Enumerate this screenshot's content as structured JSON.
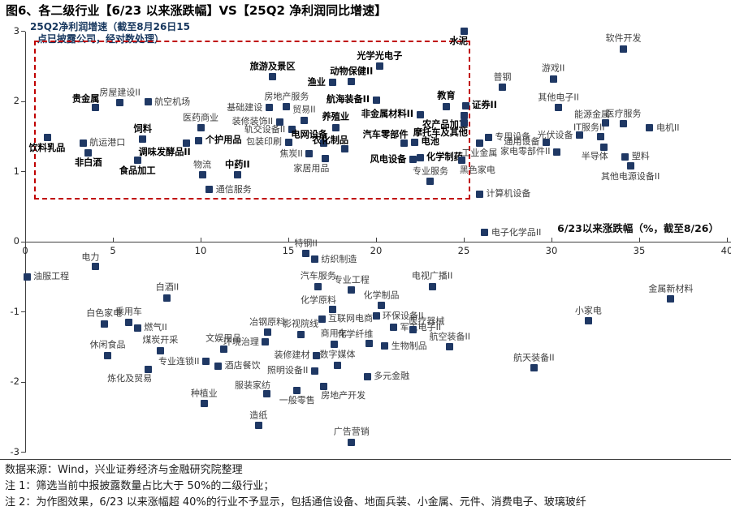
{
  "title": "图6、各二级行业【6/23 以来涨跌幅】VS【25Q2 净利润同比增速】",
  "footer": {
    "source": "数据来源：Wind，兴业证券经济与金融研究院整理",
    "note1": "注 1：筛选当前中报披露数量占比大于 50%的二级行业；",
    "note2": "注 2：为作图效果，6/23 以来涨幅超 40%的行业不予显示，包括通信设备、地面兵装、小金属、元件、消费电子、玻璃玻纤"
  },
  "chart_data": {
    "type": "scatter",
    "title": "各二级行业 6/23以来涨跌幅 VS 25Q2净利润同比增速",
    "y_axis_annotation_line1": "25Q2净利润增速（截至8月26日15",
    "y_axis_annotation_line2": "点已披露公司，经对数处理）",
    "x_axis_label": "6/23以来涨跌幅（%，截至8/26）",
    "x_ticks": [
      0,
      5,
      10,
      15,
      20,
      25,
      30,
      35,
      40
    ],
    "y_ticks": [
      3,
      2,
      1,
      0,
      -1,
      -2,
      -3
    ],
    "xlim": [
      0,
      40
    ],
    "ylim": [
      -3,
      3
    ],
    "grid": false,
    "legend": "none",
    "marker_color": "#1F3864",
    "highlight_box": {
      "x_min": 0.5,
      "x_max": 25.2,
      "y_min": 0.65,
      "y_max": 2.87,
      "color": "#C00000"
    },
    "points": [
      {
        "label": "饮料乳品",
        "x": 1.25,
        "y": 1.48,
        "bold": true,
        "pos": "below"
      },
      {
        "label": "航运港口",
        "x": 3.3,
        "y": 1.41,
        "bold": false,
        "pos": "right"
      },
      {
        "label": "贵金属",
        "x": 4.0,
        "y": 1.91,
        "bold": true,
        "pos": "above-left"
      },
      {
        "label": "非白酒",
        "x": 3.6,
        "y": 1.27,
        "bold": true,
        "pos": "below"
      },
      {
        "label": "房屋建设II",
        "x": 5.4,
        "y": 1.98,
        "bold": false,
        "pos": "above"
      },
      {
        "label": "航空机场",
        "x": 7.0,
        "y": 1.99,
        "bold": false,
        "pos": "right"
      },
      {
        "label": "饲料",
        "x": 6.7,
        "y": 1.46,
        "bold": true,
        "pos": "above"
      },
      {
        "label": "食品加工",
        "x": 6.4,
        "y": 1.16,
        "bold": true,
        "pos": "below"
      },
      {
        "label": "调味发酵品II",
        "x": 9.2,
        "y": 1.41,
        "bold": true,
        "pos": "below-left"
      },
      {
        "label": "医药商业",
        "x": 10.0,
        "y": 1.62,
        "bold": false,
        "pos": "above"
      },
      {
        "label": "个护用品",
        "x": 9.9,
        "y": 1.44,
        "bold": true,
        "pos": "right"
      },
      {
        "label": "物流",
        "x": 10.1,
        "y": 0.95,
        "bold": false,
        "pos": "above"
      },
      {
        "label": "中药II",
        "x": 12.1,
        "y": 0.95,
        "bold": true,
        "pos": "above"
      },
      {
        "label": "通信服务",
        "x": 10.5,
        "y": 0.74,
        "bold": false,
        "pos": "right"
      },
      {
        "label": "旅游及景区",
        "x": 14.1,
        "y": 2.35,
        "bold": true,
        "pos": "above"
      },
      {
        "label": "基础建设",
        "x": 13.9,
        "y": 1.91,
        "bold": false,
        "pos": "left"
      },
      {
        "label": "房地产服务",
        "x": 14.9,
        "y": 1.92,
        "bold": false,
        "pos": "above"
      },
      {
        "label": "装修装饰II",
        "x": 14.5,
        "y": 1.71,
        "bold": false,
        "pos": "left"
      },
      {
        "label": "轨交设备II",
        "x": 15.2,
        "y": 1.6,
        "bold": false,
        "pos": "left"
      },
      {
        "label": "包装印刷",
        "x": 15.0,
        "y": 1.42,
        "bold": false,
        "pos": "left"
      },
      {
        "label": "贸易II",
        "x": 15.9,
        "y": 1.73,
        "bold": false,
        "pos": "above"
      },
      {
        "label": "焦炭II",
        "x": 16.2,
        "y": 1.25,
        "bold": false,
        "pos": "left"
      },
      {
        "label": "电网设备",
        "x": 17.0,
        "y": 1.4,
        "bold": true,
        "pos": "above-left"
      },
      {
        "label": "家居用品",
        "x": 17.1,
        "y": 1.18,
        "bold": false,
        "pos": "below-left"
      },
      {
        "label": "渔业",
        "x": 17.5,
        "y": 2.27,
        "bold": true,
        "pos": "left"
      },
      {
        "label": "养殖业",
        "x": 17.7,
        "y": 1.63,
        "bold": true,
        "pos": "above"
      },
      {
        "label": "农化制品",
        "x": 18.2,
        "y": 1.32,
        "bold": true,
        "pos": "above-left"
      },
      {
        "label": "动物保健II",
        "x": 18.6,
        "y": 2.28,
        "bold": true,
        "pos": "above"
      },
      {
        "label": "光学光电子",
        "x": 20.2,
        "y": 2.5,
        "bold": true,
        "pos": "above"
      },
      {
        "label": "航海装备II",
        "x": 20.0,
        "y": 2.02,
        "bold": true,
        "pos": "left"
      },
      {
        "label": "汽车零部件",
        "x": 21.6,
        "y": 1.4,
        "bold": true,
        "pos": "above-left"
      },
      {
        "label": "电池",
        "x": 22.2,
        "y": 1.42,
        "bold": true,
        "pos": "right"
      },
      {
        "label": "非金属材料II",
        "x": 22.5,
        "y": 1.81,
        "bold": true,
        "pos": "left"
      },
      {
        "label": "风电设备",
        "x": 22.1,
        "y": 1.17,
        "bold": true,
        "pos": "left"
      },
      {
        "label": "化学制药",
        "x": 22.5,
        "y": 1.2,
        "bold": true,
        "pos": "right"
      },
      {
        "label": "专业服务",
        "x": 23.1,
        "y": 0.86,
        "bold": false,
        "pos": "above"
      },
      {
        "label": "教育",
        "x": 24.0,
        "y": 1.93,
        "bold": true,
        "pos": "above"
      },
      {
        "label": "证券II",
        "x": 25.1,
        "y": 1.94,
        "bold": true,
        "pos": "right"
      },
      {
        "label": "农产品加工",
        "x": 25.0,
        "y": 1.8,
        "bold": true,
        "pos": "below-left"
      },
      {
        "label": "摩托车及其他",
        "x": 25.0,
        "y": 1.69,
        "bold": true,
        "pos": "below-left"
      },
      {
        "label": "水泥",
        "x": 25.0,
        "y": 3.0,
        "bold": true,
        "pos": "below-left"
      },
      {
        "label": "电力",
        "x": 4.0,
        "y": -0.35,
        "bold": false,
        "pos": "above-left"
      },
      {
        "label": "油服工程",
        "x": 0.1,
        "y": -0.5,
        "bold": false,
        "pos": "right"
      },
      {
        "label": "白酒II",
        "x": 8.1,
        "y": -0.8,
        "bold": false,
        "pos": "above"
      },
      {
        "label": "白色家电",
        "x": 4.5,
        "y": -1.17,
        "bold": false,
        "pos": "above"
      },
      {
        "label": "乘用车",
        "x": 5.9,
        "y": -1.15,
        "bold": false,
        "pos": "above"
      },
      {
        "label": "燃气II",
        "x": 6.4,
        "y": -1.23,
        "bold": false,
        "pos": "right"
      },
      {
        "label": "休闲食品",
        "x": 4.7,
        "y": -1.62,
        "bold": false,
        "pos": "above"
      },
      {
        "label": "煤炭开采",
        "x": 7.7,
        "y": -1.55,
        "bold": false,
        "pos": "above"
      },
      {
        "label": "专业连锁II",
        "x": 10.3,
        "y": -1.71,
        "bold": false,
        "pos": "left"
      },
      {
        "label": "炼化及贸易",
        "x": 7.0,
        "y": -1.82,
        "bold": false,
        "pos": "below-left"
      },
      {
        "label": "文娱用品",
        "x": 11.3,
        "y": -1.53,
        "bold": false,
        "pos": "above"
      },
      {
        "label": "酒店餐饮",
        "x": 11.0,
        "y": -1.77,
        "bold": false,
        "pos": "right"
      },
      {
        "label": "环境治理",
        "x": 13.7,
        "y": -1.43,
        "bold": false,
        "pos": "left"
      },
      {
        "label": "种植业",
        "x": 10.2,
        "y": -2.31,
        "bold": false,
        "pos": "above"
      },
      {
        "label": "造纸",
        "x": 13.3,
        "y": -2.62,
        "bold": false,
        "pos": "above"
      },
      {
        "label": "特钢II",
        "x": 16.0,
        "y": -0.17,
        "bold": false,
        "pos": "above"
      },
      {
        "label": "纺织制造",
        "x": 16.5,
        "y": -0.25,
        "bold": false,
        "pos": "right"
      },
      {
        "label": "汽车服务",
        "x": 16.7,
        "y": -0.64,
        "bold": false,
        "pos": "above"
      },
      {
        "label": "专业工程",
        "x": 18.6,
        "y": -0.69,
        "bold": false,
        "pos": "above"
      },
      {
        "label": "化学原料",
        "x": 17.5,
        "y": -0.96,
        "bold": false,
        "pos": "above-left"
      },
      {
        "label": "冶钢原料",
        "x": 13.8,
        "y": -1.29,
        "bold": false,
        "pos": "above"
      },
      {
        "label": "影视院线",
        "x": 15.7,
        "y": -1.32,
        "bold": false,
        "pos": "above"
      },
      {
        "label": "互联网电商",
        "x": 16.9,
        "y": -1.1,
        "bold": false,
        "pos": "right"
      },
      {
        "label": "商用车",
        "x": 17.6,
        "y": -1.46,
        "bold": false,
        "pos": "above"
      },
      {
        "label": "化学纤维",
        "x": 19.6,
        "y": -1.45,
        "bold": false,
        "pos": "above-left"
      },
      {
        "label": "装修建材",
        "x": 16.6,
        "y": -1.62,
        "bold": false,
        "pos": "left"
      },
      {
        "label": "照明设备II",
        "x": 16.5,
        "y": -1.84,
        "bold": false,
        "pos": "left"
      },
      {
        "label": "数字媒体",
        "x": 17.8,
        "y": -1.76,
        "bold": false,
        "pos": "above"
      },
      {
        "label": "服装家纺",
        "x": 13.75,
        "y": -2.17,
        "bold": false,
        "pos": "above-left"
      },
      {
        "label": "房地产开发",
        "x": 17.0,
        "y": -2.06,
        "bold": false,
        "pos": "below-right"
      },
      {
        "label": "一般零售",
        "x": 15.5,
        "y": -2.12,
        "bold": false,
        "pos": "below"
      },
      {
        "label": "多元金融",
        "x": 19.5,
        "y": -1.92,
        "bold": false,
        "pos": "right"
      },
      {
        "label": "广告营销",
        "x": 18.6,
        "y": -2.86,
        "bold": false,
        "pos": "above"
      },
      {
        "label": "化学制品",
        "x": 20.3,
        "y": -0.91,
        "bold": false,
        "pos": "above"
      },
      {
        "label": "环保设备II",
        "x": 20.0,
        "y": -1.06,
        "bold": false,
        "pos": "right"
      },
      {
        "label": "军工电子II",
        "x": 21.0,
        "y": -1.22,
        "bold": false,
        "pos": "right"
      },
      {
        "label": "医疗器械",
        "x": 22.1,
        "y": -1.26,
        "bold": false,
        "pos": "above-right"
      },
      {
        "label": "生物制品",
        "x": 20.5,
        "y": -1.49,
        "bold": false,
        "pos": "right"
      },
      {
        "label": "电视广播II",
        "x": 23.2,
        "y": -0.64,
        "bold": false,
        "pos": "above"
      },
      {
        "label": "航空装备II",
        "x": 24.2,
        "y": -1.5,
        "bold": false,
        "pos": "above"
      },
      {
        "label": "航天装备II",
        "x": 29.0,
        "y": -1.8,
        "bold": false,
        "pos": "above"
      },
      {
        "label": "小家电",
        "x": 32.1,
        "y": -1.13,
        "bold": false,
        "pos": "above"
      },
      {
        "label": "金属新材料",
        "x": 36.8,
        "y": -0.82,
        "bold": false,
        "pos": "above"
      },
      {
        "label": "普钢",
        "x": 27.2,
        "y": 2.2,
        "bold": false,
        "pos": "above"
      },
      {
        "label": "游戏II",
        "x": 30.1,
        "y": 2.32,
        "bold": false,
        "pos": "above"
      },
      {
        "label": "软件开发",
        "x": 34.1,
        "y": 2.75,
        "bold": false,
        "pos": "above"
      },
      {
        "label": "其他电子II",
        "x": 30.4,
        "y": 1.91,
        "bold": false,
        "pos": "above"
      },
      {
        "label": "专用设备",
        "x": 26.4,
        "y": 1.49,
        "bold": false,
        "pos": "right"
      },
      {
        "label": "工业金属",
        "x": 25.9,
        "y": 1.41,
        "bold": false,
        "pos": "below"
      },
      {
        "label": "通用设备",
        "x": 29.7,
        "y": 1.42,
        "bold": false,
        "pos": "left"
      },
      {
        "label": "黑色家电",
        "x": 24.9,
        "y": 1.16,
        "bold": false,
        "pos": "below-right"
      },
      {
        "label": "家电零部件II",
        "x": 30.3,
        "y": 1.28,
        "bold": false,
        "pos": "left"
      },
      {
        "label": "光伏设备",
        "x": 31.6,
        "y": 1.52,
        "bold": false,
        "pos": "left"
      },
      {
        "label": "IT服务II",
        "x": 32.8,
        "y": 1.5,
        "bold": false,
        "pos": "above-left"
      },
      {
        "label": "半导体",
        "x": 33.0,
        "y": 1.35,
        "bold": false,
        "pos": "below-left"
      },
      {
        "label": "能源金属",
        "x": 33.1,
        "y": 1.69,
        "bold": false,
        "pos": "above-left"
      },
      {
        "label": "医疗服务",
        "x": 34.1,
        "y": 1.68,
        "bold": false,
        "pos": "above"
      },
      {
        "label": "电机II",
        "x": 35.6,
        "y": 1.62,
        "bold": false,
        "pos": "right"
      },
      {
        "label": "塑料",
        "x": 34.2,
        "y": 1.21,
        "bold": false,
        "pos": "right"
      },
      {
        "label": "其他电源设备II",
        "x": 34.5,
        "y": 1.08,
        "bold": false,
        "pos": "below"
      },
      {
        "label": "计算机设备",
        "x": 25.9,
        "y": 0.68,
        "bold": false,
        "pos": "right"
      },
      {
        "label": "电子化学品II",
        "x": 26.2,
        "y": 0.13,
        "bold": false,
        "pos": "right"
      }
    ]
  }
}
